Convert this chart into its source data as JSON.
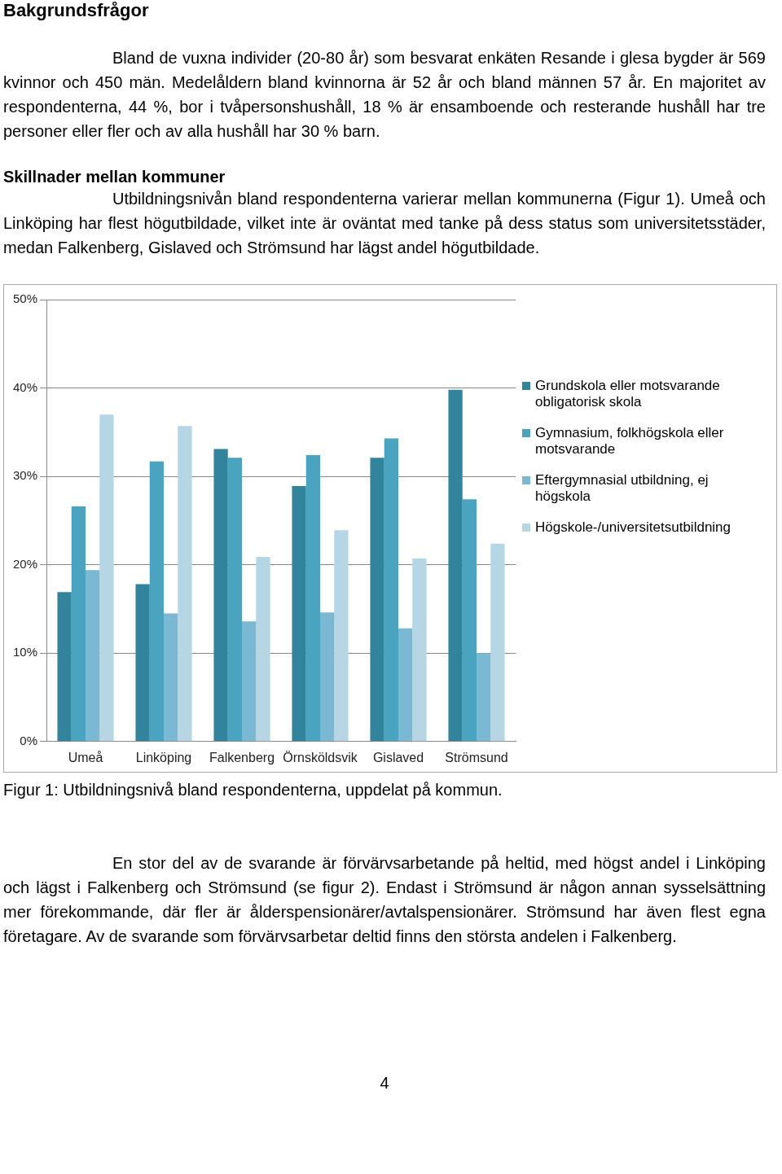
{
  "chart_data": {
    "type": "bar",
    "title": "Bakgrundsfrågor",
    "annotations": [
      "Bland de vuxna individer (20-80 år) som besvarat enkäten Resande i glesa bygder är 569 kvinnor och 450 män. Medelåldern bland kvinnorna är 52 år och bland männen 57 år. En majoritet av respondenterna, 44 %, bor i tvåpersonshushåll, 18 % är ensamboende och resterande hushåll har tre personer eller fler och av alla hushåll har 30 % barn.",
      "Skillnader mellan kommuner",
      "Utbildningsnivån bland respondenterna varierar mellan kommunerna (Figur 1). Umeå och Linköping har flest högutbildade, vilket inte är oväntat med tanke på dess status som universitetsstäder, medan Falkenberg, Gislaved och Strömsund har lägst andel högutbildade.",
      "Figur 1: Utbildningsnivå bland respondenterna, uppdelat på kommun.",
      "En stor del av de svarande är förvärvsarbetande på heltid, med högst andel i Linköping och lägst i Falkenberg och Strömsund (se figur 2). Endast i Strömsund är någon annan sysselsättning mer förekommande, där fler är ålderspensionärer/avtalspensionärer. Strömsund har även flest egna företagare. Av de svarande som förvärvsarbetar deltid finns den största andelen i Falkenberg.",
      "4"
    ],
    "categories": [
      "Umeå",
      "Linköping",
      "Falkenberg",
      "Örnsköldsvik",
      "Gislaved",
      "Strömsund"
    ],
    "series": [
      {
        "name": "Grundskola eller motsvarande obligatorisk skola",
        "color": "#31849b",
        "values": [
          16.9,
          17.8,
          33.1,
          28.9,
          32.1,
          39.8
        ]
      },
      {
        "name": "Gymnasium, folkhögskola eller motsvarande",
        "color": "#4aa3bf",
        "values": [
          26.6,
          31.7,
          32.1,
          32.4,
          34.3,
          27.4
        ]
      },
      {
        "name": "Eftergymnasial utbildning, ej högskola",
        "color": "#7bb8d2",
        "values": [
          19.4,
          14.5,
          13.6,
          14.6,
          12.8,
          10.0
        ]
      },
      {
        "name": "Högskole-/universitetsutbildning",
        "color": "#b7d6e3",
        "values": [
          37.0,
          35.7,
          20.9,
          23.9,
          20.7,
          22.4
        ]
      }
    ],
    "ylim": [
      0,
      50
    ],
    "yticks": [
      {
        "value": 0,
        "label": "0%"
      },
      {
        "value": 10,
        "label": "10%"
      },
      {
        "value": 20,
        "label": "20%"
      },
      {
        "value": 30,
        "label": "30%"
      },
      {
        "value": 40,
        "label": "40%"
      },
      {
        "value": 50,
        "label": "50%"
      }
    ],
    "grid": "y",
    "legend": "right"
  }
}
